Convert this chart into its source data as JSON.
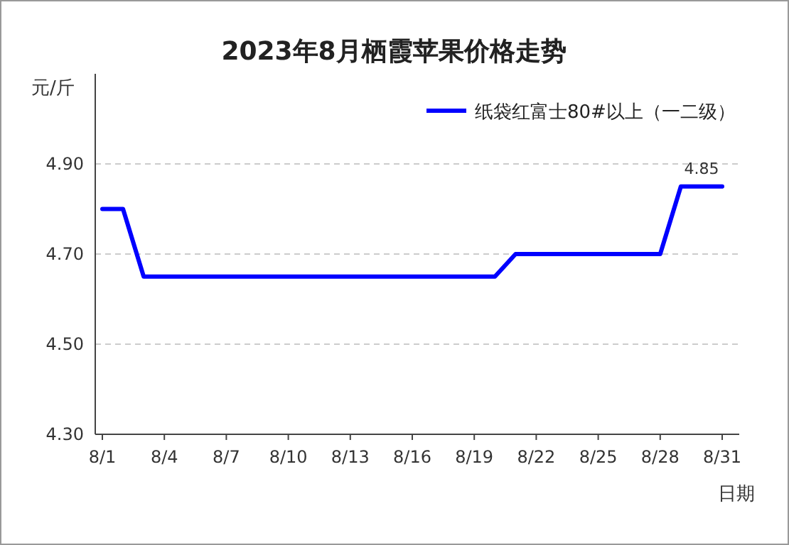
{
  "chart_data": {
    "type": "line",
    "title": "2023年8月栖霞苹果价格走势",
    "ylabel": "元/斤",
    "xlabel": "日期",
    "categories": [
      "8/1",
      null,
      null,
      "8/4",
      null,
      null,
      "8/7",
      null,
      null,
      "8/10",
      null,
      null,
      "8/13",
      null,
      null,
      "8/16",
      null,
      null,
      "8/19",
      null,
      null,
      "8/22",
      null,
      null,
      "8/25",
      null,
      null,
      "8/28",
      null,
      null,
      "8/31"
    ],
    "series": [
      {
        "name": "纸袋红富士80#以上（一二级）",
        "color": "#0000ff",
        "values": [
          4.8,
          4.8,
          4.65,
          4.65,
          4.65,
          4.65,
          4.65,
          4.65,
          4.65,
          4.65,
          4.65,
          4.65,
          4.65,
          4.65,
          4.65,
          4.65,
          4.65,
          4.65,
          4.65,
          4.65,
          4.7,
          4.7,
          4.7,
          4.7,
          4.7,
          4.7,
          4.7,
          4.7,
          4.85,
          4.85,
          4.85
        ],
        "value_labels": [
          null,
          null,
          null,
          null,
          null,
          null,
          null,
          null,
          null,
          null,
          null,
          null,
          null,
          null,
          null,
          null,
          null,
          null,
          null,
          null,
          null,
          null,
          null,
          null,
          null,
          null,
          null,
          null,
          null,
          "4.85",
          null
        ]
      }
    ],
    "ylim": [
      4.3,
      5.1
    ],
    "yticks": [
      {
        "value": 4.3,
        "label": "4.30"
      },
      {
        "value": 4.5,
        "label": "4.50"
      },
      {
        "value": 4.7,
        "label": "4.70"
      },
      {
        "value": 4.9,
        "label": "4.90"
      }
    ],
    "grid": "y",
    "legend": "top right",
    "marker": "none",
    "line_style": "solid"
  }
}
